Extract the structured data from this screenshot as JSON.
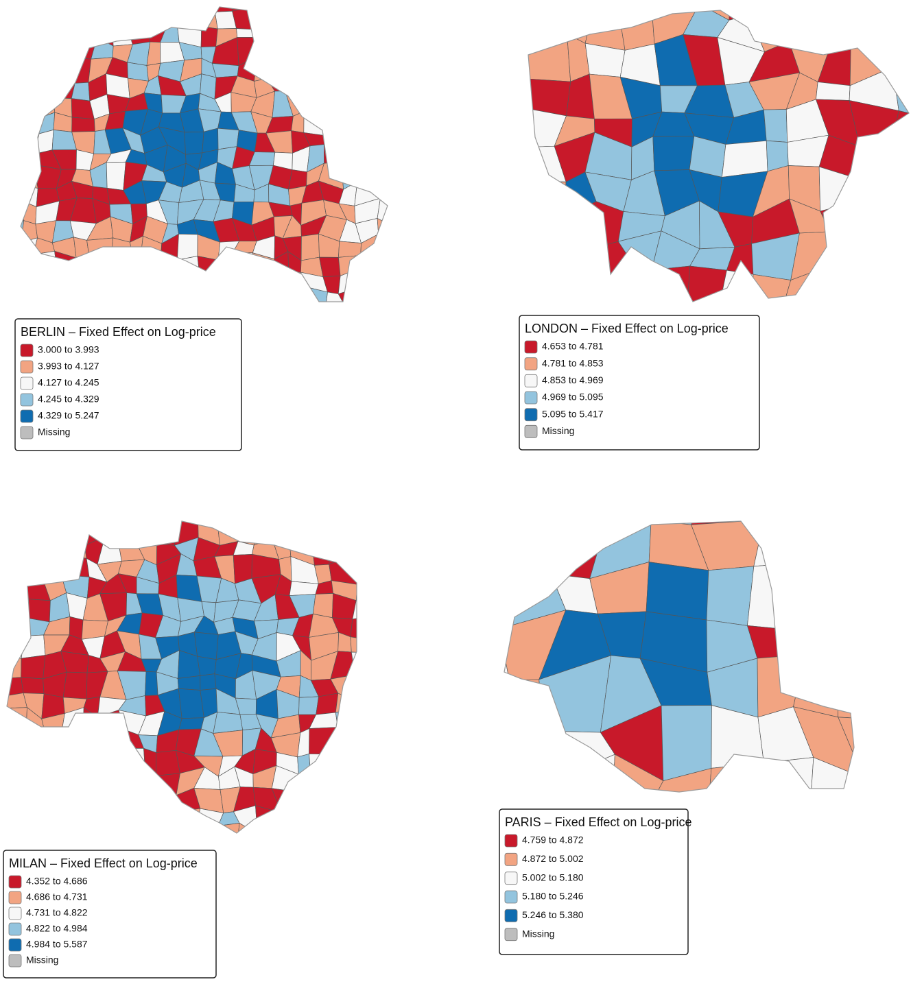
{
  "maps": [
    {
      "title": "BERLIN – Fixed Effect on Log-price",
      "legend": [
        {
          "label": "3.000 to 3.993",
          "color": "#c8192a"
        },
        {
          "label": "3.993 to 4.127",
          "color": "#f2a482"
        },
        {
          "label": "4.127 to 4.245",
          "color": "#f7f7f7"
        },
        {
          "label": "4.245 to 4.329",
          "color": "#93c4de"
        },
        {
          "label": "4.329 to 5.247",
          "color": "#0f6cb0"
        },
        {
          "label": "Missing",
          "color": "#bdbdbd"
        }
      ]
    },
    {
      "title": "LONDON – Fixed Effect on Log-price",
      "legend": [
        {
          "label": "4.653 to 4.781",
          "color": "#c8192a"
        },
        {
          "label": "4.781 to 4.853",
          "color": "#f2a482"
        },
        {
          "label": "4.853 to 4.969",
          "color": "#f7f7f7"
        },
        {
          "label": "4.969 to 5.095",
          "color": "#93c4de"
        },
        {
          "label": "5.095 to 5.417",
          "color": "#0f6cb0"
        },
        {
          "label": "Missing",
          "color": "#bdbdbd"
        }
      ]
    },
    {
      "title": "MILAN – Fixed Effect on Log-price",
      "legend": [
        {
          "label": "4.352 to 4.686",
          "color": "#c8192a"
        },
        {
          "label": "4.686 to 4.731",
          "color": "#f2a482"
        },
        {
          "label": "4.731 to 4.822",
          "color": "#f7f7f7"
        },
        {
          "label": "4.822 to 4.984",
          "color": "#93c4de"
        },
        {
          "label": "4.984 to 5.587",
          "color": "#0f6cb0"
        },
        {
          "label": "Missing",
          "color": "#bdbdbd"
        }
      ]
    },
    {
      "title": "PARIS – Fixed Effect on Log-price",
      "legend": [
        {
          "label": "4.759 to 4.872",
          "color": "#c8192a"
        },
        {
          "label": "4.872 to 5.002",
          "color": "#f2a482"
        },
        {
          "label": "5.002 to 5.180",
          "color": "#f7f7f7"
        },
        {
          "label": "5.180 to 5.246",
          "color": "#93c4de"
        },
        {
          "label": "5.246 to 5.380",
          "color": "#0f6cb0"
        },
        {
          "label": "Missing",
          "color": "#bdbdbd"
        }
      ]
    }
  ]
}
